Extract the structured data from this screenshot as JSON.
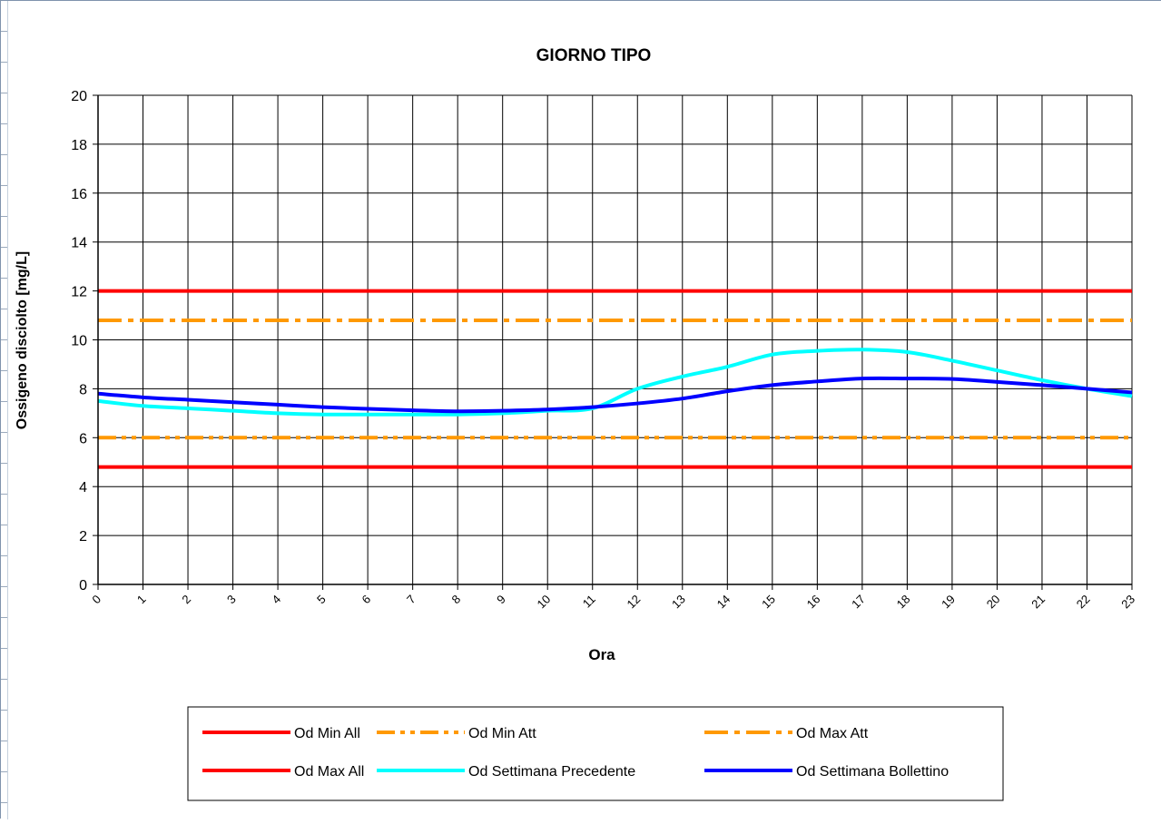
{
  "chart_data": {
    "type": "line",
    "title": "GIORNO TIPO",
    "xlabel": "Ora",
    "ylabel": "Ossigeno disciolto [mg/L]",
    "x": [
      0,
      1,
      2,
      3,
      4,
      5,
      6,
      7,
      8,
      9,
      10,
      11,
      12,
      13,
      14,
      15,
      16,
      17,
      18,
      19,
      20,
      21,
      22,
      23
    ],
    "ylim": [
      0,
      20
    ],
    "yticks": [
      0,
      2,
      4,
      6,
      8,
      10,
      12,
      14,
      16,
      18,
      20
    ],
    "grid": true,
    "legend_position": "bottom",
    "series": [
      {
        "name": "Od Min All",
        "color": "#ff0000",
        "dash": "solid",
        "values": [
          4.8,
          4.8,
          4.8,
          4.8,
          4.8,
          4.8,
          4.8,
          4.8,
          4.8,
          4.8,
          4.8,
          4.8,
          4.8,
          4.8,
          4.8,
          4.8,
          4.8,
          4.8,
          4.8,
          4.8,
          4.8,
          4.8,
          4.8,
          4.8
        ]
      },
      {
        "name": "Od Min Att",
        "color": "#ff9900",
        "dash": "dash-dot-dot",
        "values": [
          6.0,
          6.0,
          6.0,
          6.0,
          6.0,
          6.0,
          6.0,
          6.0,
          6.0,
          6.0,
          6.0,
          6.0,
          6.0,
          6.0,
          6.0,
          6.0,
          6.0,
          6.0,
          6.0,
          6.0,
          6.0,
          6.0,
          6.0,
          6.0
        ]
      },
      {
        "name": "Od Max Att",
        "color": "#ff9900",
        "dash": "dash-dot",
        "values": [
          10.8,
          10.8,
          10.8,
          10.8,
          10.8,
          10.8,
          10.8,
          10.8,
          10.8,
          10.8,
          10.8,
          10.8,
          10.8,
          10.8,
          10.8,
          10.8,
          10.8,
          10.8,
          10.8,
          10.8,
          10.8,
          10.8,
          10.8,
          10.8
        ]
      },
      {
        "name": "Od Max All",
        "color": "#ff0000",
        "dash": "solid",
        "values": [
          12.0,
          12.0,
          12.0,
          12.0,
          12.0,
          12.0,
          12.0,
          12.0,
          12.0,
          12.0,
          12.0,
          12.0,
          12.0,
          12.0,
          12.0,
          12.0,
          12.0,
          12.0,
          12.0,
          12.0,
          12.0,
          12.0,
          12.0,
          12.0
        ]
      },
      {
        "name": "Od Settimana Precedente",
        "color": "#00ffff",
        "dash": "solid",
        "values": [
          7.5,
          7.3,
          7.2,
          7.1,
          7.0,
          6.95,
          6.95,
          6.95,
          6.95,
          7.0,
          7.1,
          7.2,
          8.0,
          8.5,
          8.9,
          9.4,
          9.55,
          9.6,
          9.5,
          9.15,
          8.75,
          8.35,
          8.0,
          7.7
        ]
      },
      {
        "name": "Od Settimana Bollettino",
        "color": "#0000ff",
        "dash": "solid",
        "values": [
          7.8,
          7.65,
          7.55,
          7.45,
          7.35,
          7.25,
          7.18,
          7.12,
          7.08,
          7.1,
          7.15,
          7.25,
          7.4,
          7.6,
          7.9,
          8.15,
          8.3,
          8.42,
          8.42,
          8.4,
          8.28,
          8.15,
          8.0,
          7.85
        ]
      }
    ],
    "legend_rows": [
      [
        "Od Min All",
        "Od Min Att",
        "Od Max Att"
      ],
      [
        "Od Max All",
        "Od Settimana Precedente",
        "Od Settimana Bollettino"
      ]
    ]
  }
}
